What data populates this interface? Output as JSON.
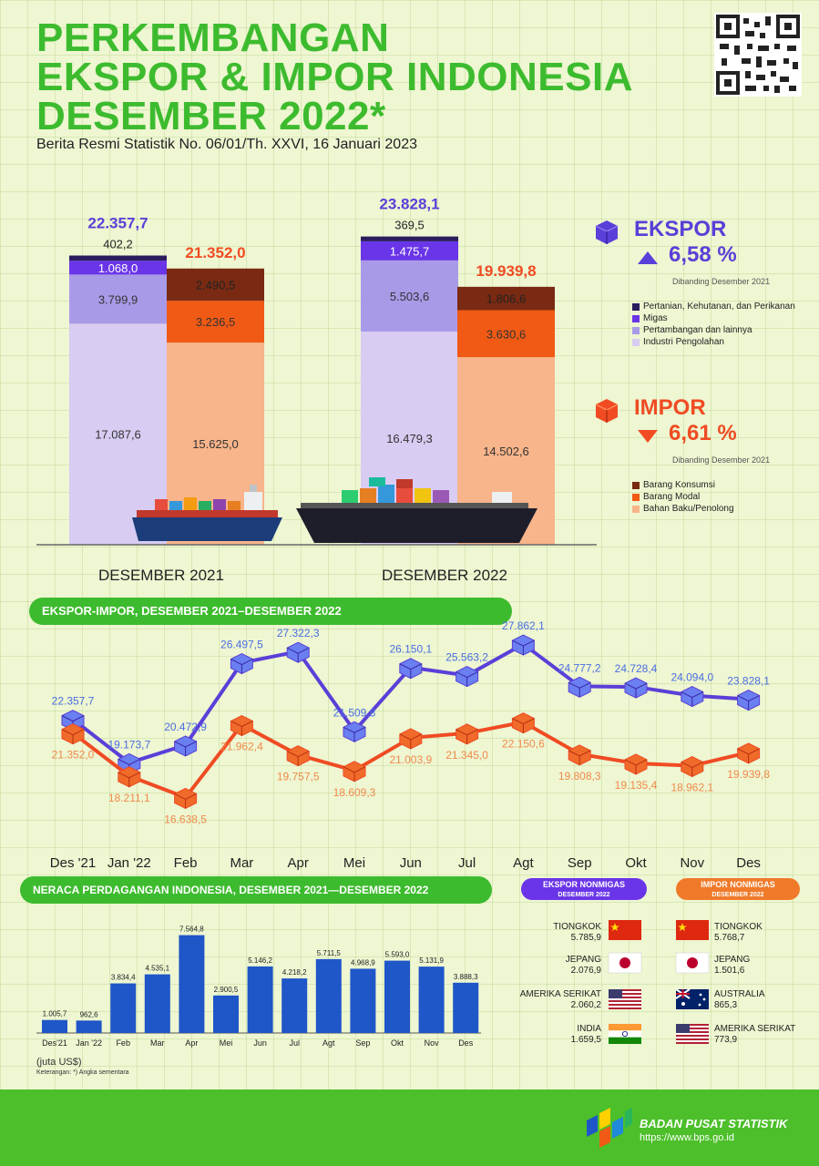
{
  "header": {
    "title_lines": [
      "PERKEMBANGAN",
      "EKSPOR & IMPOR INDONESIA",
      "DESEMBER 2022*"
    ],
    "subtitle": "Berita Resmi Statistik No. 06/01/Th. XXVI, 16 Januari 2023"
  },
  "colors": {
    "export_line": "#5a3fd8",
    "import_line": "#f04b23",
    "bar_blue": "#1f56c8",
    "green": "#3dbb2e",
    "ex_pertanian": "#2a1c5e",
    "ex_migas": "#6a35e8",
    "ex_tambang": "#a99ae8",
    "ex_industri": "#d8ccf2",
    "im_konsumsi": "#7a2a12",
    "im_modal": "#f05a14",
    "im_baku": "#f8b48a"
  },
  "ekspor_legend": {
    "title": "EKSPOR",
    "change": "6,58 %",
    "note": "Dibanding Desember 2021",
    "items": [
      "Pertanian, Kehutanan, dan Perikanan",
      "Migas",
      "Pertambangan dan lainnya",
      "Industri Pengolahan"
    ]
  },
  "impor_legend": {
    "title": "IMPOR",
    "change": "6,61 %",
    "note": "Dibanding Desember 2021",
    "items": [
      "Barang Konsumsi",
      "Barang Modal",
      "Bahan Baku/Penolong"
    ]
  },
  "chart_data": [
    {
      "type": "bar",
      "stacked": true,
      "categories": [
        "DESEMBER 2021",
        "DESEMBER 2022"
      ],
      "groups": [
        {
          "name": "EKSPOR",
          "totals": [
            "22.357,7",
            "23.828,1"
          ],
          "series": [
            {
              "name": "Industri Pengolahan",
              "values": [
                17087.6,
                16479.3
              ],
              "labels": [
                "17.087,6",
                "16.479,3"
              ]
            },
            {
              "name": "Pertambangan dan lainnya",
              "values": [
                3799.9,
                5503.6
              ],
              "labels": [
                "3.799,9",
                "5.503,6"
              ]
            },
            {
              "name": "Migas",
              "values": [
                1068.0,
                1475.7
              ],
              "labels": [
                "1.068,0",
                "1.475,7"
              ]
            },
            {
              "name": "Pertanian, Kehutanan, dan Perikanan",
              "values": [
                402.2,
                369.5
              ],
              "labels": [
                "402,2",
                "369,5"
              ]
            }
          ]
        },
        {
          "name": "IMPOR",
          "totals": [
            "21.352,0",
            "19.939,8"
          ],
          "series": [
            {
              "name": "Bahan Baku/Penolong",
              "values": [
                15625.0,
                14502.6
              ],
              "labels": [
                "15.625,0",
                "14.502,6"
              ]
            },
            {
              "name": "Barang Modal",
              "values": [
                3236.5,
                3630.6
              ],
              "labels": [
                "3.236,5",
                "3.630,6"
              ]
            },
            {
              "name": "Barang Konsumsi",
              "values": [
                2490.5,
                1806.6
              ],
              "labels": [
                "2.490,5",
                "1.806,6"
              ]
            }
          ]
        }
      ]
    },
    {
      "type": "line",
      "title": "EKSPOR-IMPOR, DESEMBER 2021–DESEMBER 2022",
      "categories": [
        "Des '21",
        "Jan '22",
        "Feb",
        "Mar",
        "Apr",
        "Mei",
        "Jun",
        "Jul",
        "Agt",
        "Sep",
        "Okt",
        "Nov",
        "Des"
      ],
      "series": [
        {
          "name": "EKSPOR",
          "values": [
            22357.7,
            19173.7,
            20472.9,
            26497.5,
            27322.3,
            21509.8,
            26150.1,
            25563.2,
            27862.1,
            24777.2,
            24728.4,
            24094.0,
            23828.1
          ],
          "labels": [
            "22.357,7",
            "19.173,7",
            "20.472,9",
            "26.497,5",
            "27.322,3",
            "21.509,8",
            "26.150,1",
            "25.563,2",
            "27.862,1",
            "24.777,2",
            "24.728,4",
            "24.094,0",
            "23.828,1"
          ]
        },
        {
          "name": "IMPOR",
          "values": [
            21352.0,
            18211.1,
            16638.5,
            21962.4,
            19757.5,
            18609.3,
            21003.9,
            21345.0,
            22150.6,
            19808.3,
            19135.4,
            18962.1,
            19939.8
          ],
          "labels": [
            "21.352,0",
            "18.211,1",
            "16.638,5",
            "21.962,4",
            "19.757,5",
            "18.609,3",
            "21.003,9",
            "21.345,0",
            "22.150,6",
            "19.808,3",
            "19.135,4",
            "18.962,1",
            "19.939,8"
          ]
        }
      ]
    },
    {
      "type": "bar",
      "title": "NERACA PERDAGANGAN INDONESIA, DESEMBER 2021—DESEMBER 2022",
      "categories": [
        "Des'21",
        "Jan '22",
        "Feb",
        "Mar",
        "Apr",
        "Mei",
        "Jun",
        "Jul",
        "Agt",
        "Sep",
        "Okt",
        "Nov",
        "Des"
      ],
      "values": [
        1005.7,
        962.6,
        3834.4,
        4535.1,
        7564.8,
        2900.5,
        5146.2,
        4218.2,
        5711.5,
        4968.9,
        5593.0,
        5131.9,
        3888.3
      ],
      "labels": [
        "1.005,7",
        "962,6",
        "3.834,4",
        "4.535,1",
        "7.564,8",
        "2.900,5",
        "5.146,2",
        "4.218,2",
        "5.711,5",
        "4.968,9",
        "5.593,0",
        "5.131,9",
        "3.888,3"
      ],
      "unit": "(juta US$)",
      "note": "Keterangan: *) Angka sementara"
    }
  ],
  "ekspor_nonmigas": {
    "title": "EKSPOR NONMIGAS",
    "subtitle": "DESEMBER 2022",
    "countries": [
      {
        "name": "TIONGKOK",
        "value": "5.785,9",
        "flag": "china"
      },
      {
        "name": "JEPANG",
        "value": "2.076,9",
        "flag": "japan"
      },
      {
        "name": "AMERIKA SERIKAT",
        "value": "2.060,2",
        "flag": "usa"
      },
      {
        "name": "INDIA",
        "value": "1.659,5",
        "flag": "india"
      }
    ]
  },
  "impor_nonmigas": {
    "title": "IMPOR NONMIGAS",
    "subtitle": "DESEMBER 2022",
    "countries": [
      {
        "name": "TIONGKOK",
        "value": "5.768,7",
        "flag": "china"
      },
      {
        "name": "JEPANG",
        "value": "1.501,6",
        "flag": "japan"
      },
      {
        "name": "AUSTRALIA",
        "value": "865,3",
        "flag": "australia"
      },
      {
        "name": "AMERIKA SERIKAT",
        "value": "773,9",
        "flag": "usa"
      }
    ]
  },
  "footer": {
    "org": "BADAN PUSAT STATISTIK",
    "url": "https://www.bps.go.id"
  }
}
